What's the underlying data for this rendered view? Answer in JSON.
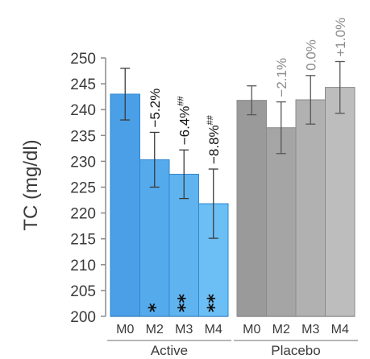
{
  "chart_data": {
    "type": "bar",
    "ylabel": "TC (mg/dl)",
    "ylim": [
      200,
      250
    ],
    "yticks": [
      200,
      205,
      210,
      215,
      220,
      225,
      230,
      235,
      240,
      245,
      250
    ],
    "groups": [
      {
        "name": "Active",
        "categories": [
          "M0",
          "M2",
          "M3",
          "M4"
        ],
        "values": [
          243,
          230.3,
          227.5,
          221.8
        ],
        "errors": [
          5,
          5.3,
          4.7,
          6.7
        ],
        "colors": [
          "#4a9fe6",
          "#55aaec",
          "#5fb4f0",
          "#6bbff5"
        ],
        "label_color": "#111111",
        "change_labels": [
          "",
          "−5.2%",
          "−6.4%",
          "−8.8%"
        ],
        "change_sup": [
          "",
          "",
          "##",
          "##"
        ],
        "stars": [
          "",
          "*",
          "**",
          "**"
        ]
      },
      {
        "name": "Placebo",
        "categories": [
          "M0",
          "M2",
          "M3",
          "M4"
        ],
        "values": [
          241.8,
          236.5,
          241.9,
          244.3
        ],
        "errors": [
          2.8,
          5.0,
          4.7,
          5.0
        ],
        "colors": [
          "#9a9a9a",
          "#a5a5a5",
          "#b1b1b1",
          "#bdbdbd"
        ],
        "label_color": "#8c8c8c",
        "change_labels": [
          "",
          "−2.1%",
          "0.0%",
          "+1.0%"
        ],
        "change_sup": [
          "",
          "",
          "",
          ""
        ],
        "stars": [
          "",
          "",
          "",
          ""
        ]
      }
    ]
  }
}
